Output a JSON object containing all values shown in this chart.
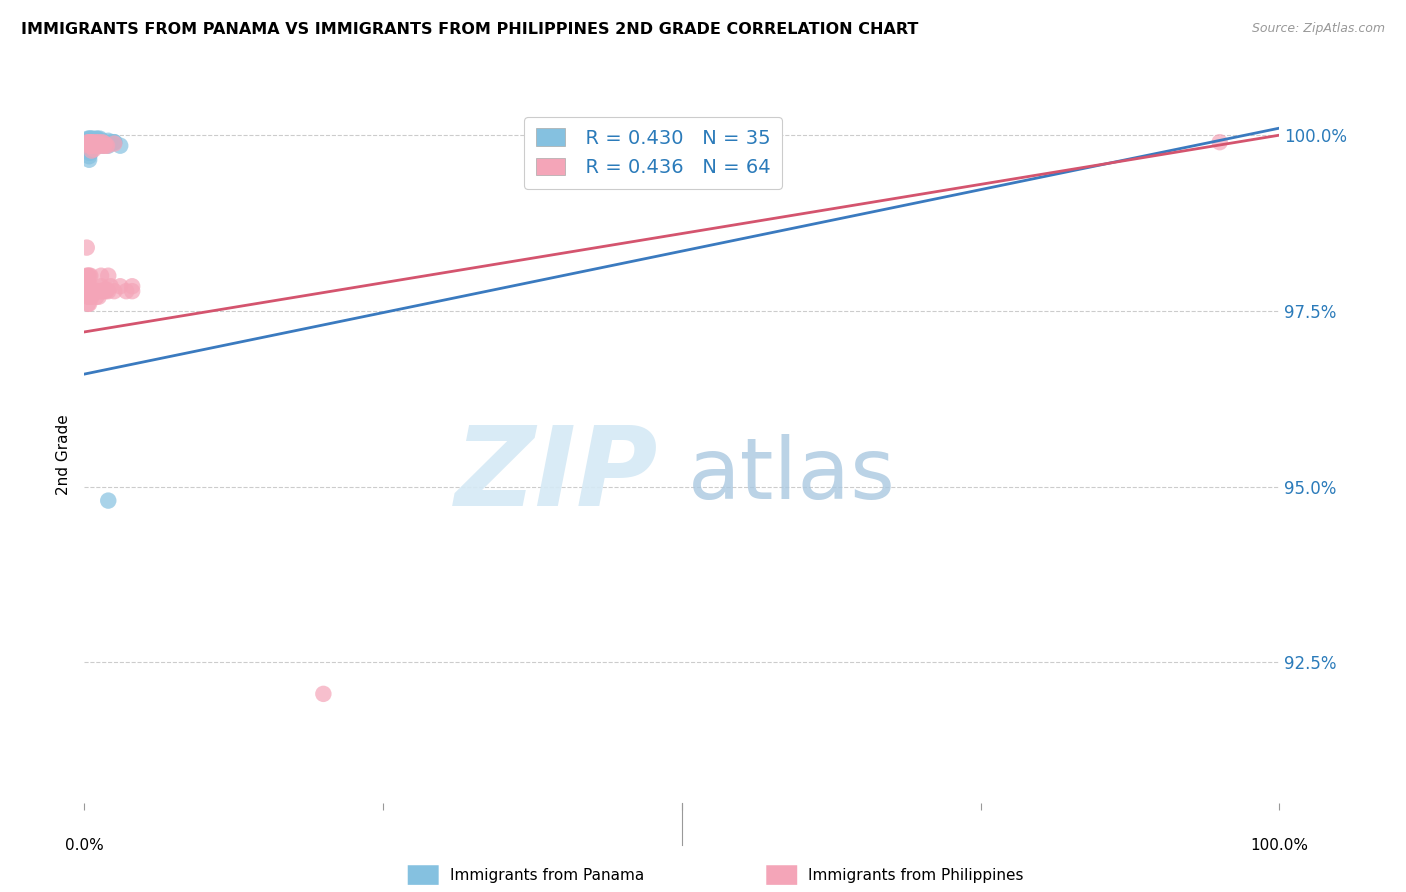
{
  "title": "IMMIGRANTS FROM PANAMA VS IMMIGRANTS FROM PHILIPPINES 2ND GRADE CORRELATION CHART",
  "source": "Source: ZipAtlas.com",
  "ylabel": "2nd Grade",
  "xlim": [
    0.0,
    1.0
  ],
  "ylim": [
    0.905,
    1.004
  ],
  "yticks": [
    1.0,
    0.975,
    0.95,
    0.925
  ],
  "ytick_labels": [
    "100.0%",
    "97.5%",
    "95.0%",
    "92.5%"
  ],
  "legend_r_panama": "R = 0.430",
  "legend_n_panama": "N = 35",
  "legend_r_phil": "R = 0.436",
  "legend_n_phil": "N = 64",
  "panama_color": "#85c1e0",
  "phil_color": "#f4a5b8",
  "panama_line_color": "#3a7abf",
  "phil_line_color": "#d4546e",
  "panama_line": [
    [
      0.0,
      0.966
    ],
    [
      1.0,
      1.001
    ]
  ],
  "phil_line": [
    [
      0.0,
      0.972
    ],
    [
      1.0,
      1.0
    ]
  ],
  "panama_points": [
    [
      0.003,
      0.9995
    ],
    [
      0.003,
      0.999
    ],
    [
      0.003,
      0.9985
    ],
    [
      0.003,
      0.998
    ],
    [
      0.004,
      0.9995
    ],
    [
      0.004,
      0.999
    ],
    [
      0.004,
      0.9985
    ],
    [
      0.004,
      0.998
    ],
    [
      0.004,
      0.9975
    ],
    [
      0.004,
      0.997
    ],
    [
      0.004,
      0.9965
    ],
    [
      0.005,
      0.9995
    ],
    [
      0.005,
      0.999
    ],
    [
      0.005,
      0.9985
    ],
    [
      0.005,
      0.9975
    ],
    [
      0.006,
      0.9995
    ],
    [
      0.006,
      0.9988
    ],
    [
      0.007,
      0.9995
    ],
    [
      0.007,
      0.9988
    ],
    [
      0.008,
      0.999
    ],
    [
      0.01,
      0.9995
    ],
    [
      0.01,
      0.9988
    ],
    [
      0.011,
      0.9995
    ],
    [
      0.012,
      0.999
    ],
    [
      0.013,
      0.9995
    ],
    [
      0.014,
      0.999
    ],
    [
      0.015,
      0.9992
    ],
    [
      0.015,
      0.9985
    ],
    [
      0.02,
      0.9992
    ],
    [
      0.02,
      0.9985
    ],
    [
      0.022,
      0.999
    ],
    [
      0.025,
      0.999
    ],
    [
      0.03,
      0.9985
    ],
    [
      0.02,
      0.948
    ],
    [
      0.025,
      0.999
    ]
  ],
  "phil_points": [
    [
      0.002,
      0.984
    ],
    [
      0.002,
      0.98
    ],
    [
      0.003,
      0.999
    ],
    [
      0.003,
      0.98
    ],
    [
      0.003,
      0.9785
    ],
    [
      0.003,
      0.977
    ],
    [
      0.003,
      0.976
    ],
    [
      0.004,
      0.999
    ],
    [
      0.004,
      0.9985
    ],
    [
      0.004,
      0.98
    ],
    [
      0.004,
      0.9785
    ],
    [
      0.004,
      0.977
    ],
    [
      0.004,
      0.976
    ],
    [
      0.005,
      0.999
    ],
    [
      0.005,
      0.9985
    ],
    [
      0.005,
      0.98
    ],
    [
      0.005,
      0.9785
    ],
    [
      0.005,
      0.977
    ],
    [
      0.006,
      0.999
    ],
    [
      0.006,
      0.9985
    ],
    [
      0.006,
      0.9978
    ],
    [
      0.006,
      0.978
    ],
    [
      0.006,
      0.977
    ],
    [
      0.007,
      0.999
    ],
    [
      0.007,
      0.9985
    ],
    [
      0.007,
      0.9775
    ],
    [
      0.008,
      0.9988
    ],
    [
      0.008,
      0.998
    ],
    [
      0.009,
      0.9985
    ],
    [
      0.009,
      0.9778
    ],
    [
      0.01,
      0.999
    ],
    [
      0.01,
      0.9985
    ],
    [
      0.01,
      0.9778
    ],
    [
      0.01,
      0.977
    ],
    [
      0.011,
      0.9985
    ],
    [
      0.012,
      0.999
    ],
    [
      0.012,
      0.9985
    ],
    [
      0.012,
      0.9778
    ],
    [
      0.012,
      0.977
    ],
    [
      0.013,
      0.9778
    ],
    [
      0.014,
      0.98
    ],
    [
      0.014,
      0.9785
    ],
    [
      0.015,
      0.999
    ],
    [
      0.015,
      0.9985
    ],
    [
      0.015,
      0.9778
    ],
    [
      0.016,
      0.9985
    ],
    [
      0.016,
      0.9778
    ],
    [
      0.017,
      0.9988
    ],
    [
      0.017,
      0.978
    ],
    [
      0.018,
      0.9985
    ],
    [
      0.018,
      0.9778
    ],
    [
      0.019,
      0.9985
    ],
    [
      0.019,
      0.978
    ],
    [
      0.02,
      0.98
    ],
    [
      0.02,
      0.9778
    ],
    [
      0.022,
      0.9785
    ],
    [
      0.025,
      0.9988
    ],
    [
      0.025,
      0.9778
    ],
    [
      0.03,
      0.9785
    ],
    [
      0.035,
      0.9778
    ],
    [
      0.04,
      0.9785
    ],
    [
      0.04,
      0.9778
    ],
    [
      0.2,
      0.9205
    ],
    [
      0.95,
      0.999
    ]
  ]
}
